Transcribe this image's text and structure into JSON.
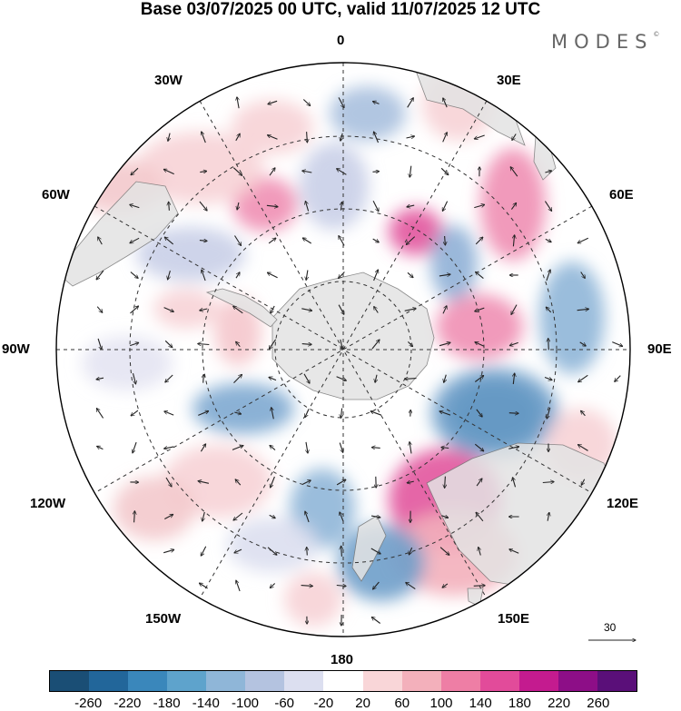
{
  "title": "Base 03/07/2025 00 UTC, valid 11/07/2025 12 UTC",
  "brand": "MODES",
  "brand_mark": "©",
  "longitude_labels": {
    "n": "0",
    "ne": "30E",
    "e1": "60E",
    "e": "90E",
    "se1": "120E",
    "se": "150E",
    "s": "180",
    "sw": "150W",
    "sw1": "120W",
    "w": "90W",
    "nw1": "60W",
    "nw": "30W"
  },
  "reference_vector": "30",
  "colorbar": {
    "ticks": [
      "-260",
      "-220",
      "-180",
      "-140",
      "-100",
      "-60",
      "-20",
      "20",
      "60",
      "100",
      "140",
      "180",
      "220",
      "260"
    ],
    "colors": [
      "#1a4e75",
      "#22669a",
      "#3a87bb",
      "#5ea3cc",
      "#8fb6d8",
      "#b4c3e0",
      "#dcdff0",
      "#ffffff",
      "#f9d6d8",
      "#f3b0bb",
      "#ee7ea5",
      "#e24b9a",
      "#c41b8f",
      "#8d0e87",
      "#5a0f79"
    ]
  },
  "icons": {
    "reference_arrow": "right-arrow-icon",
    "wind_vectors": "arrow-icon"
  }
}
